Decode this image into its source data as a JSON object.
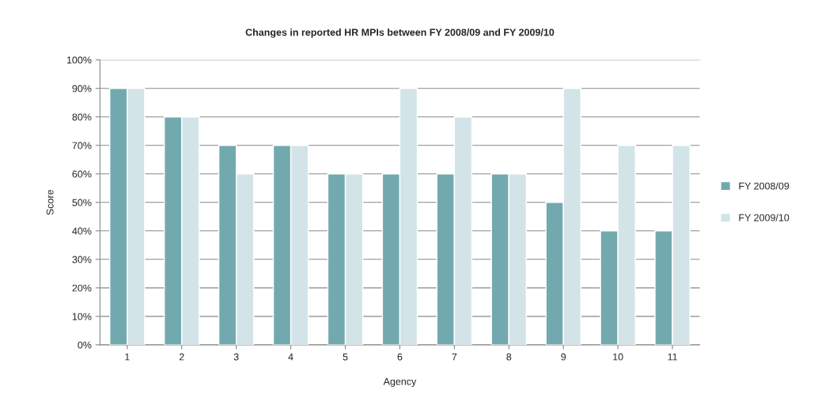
{
  "chart_data": {
    "type": "bar",
    "title": "Changes in reported HR MPIs between FY 2008/09 and FY 2009/10",
    "xlabel": "Agency",
    "ylabel": "Score",
    "categories": [
      "1",
      "2",
      "3",
      "4",
      "5",
      "6",
      "7",
      "8",
      "9",
      "10",
      "11"
    ],
    "series": [
      {
        "name": "FY 2008/09",
        "color": "#72a9ae",
        "values": [
          90,
          80,
          70,
          70,
          60,
          60,
          60,
          60,
          50,
          40,
          40
        ]
      },
      {
        "name": "FY 2009/10",
        "color": "#d3e4e8",
        "values": [
          90,
          80,
          60,
          70,
          60,
          90,
          80,
          60,
          90,
          70,
          70
        ]
      }
    ],
    "ylim": [
      0,
      100
    ],
    "yticks": [
      {
        "value": 0,
        "label": "0%"
      },
      {
        "value": 10,
        "label": "10%"
      },
      {
        "value": 20,
        "label": "20%"
      },
      {
        "value": 30,
        "label": "30%"
      },
      {
        "value": 40,
        "label": "40%"
      },
      {
        "value": 50,
        "label": "50%"
      },
      {
        "value": 60,
        "label": "60%"
      },
      {
        "value": 70,
        "label": "70%"
      },
      {
        "value": 80,
        "label": "80%"
      },
      {
        "value": 90,
        "label": "90%"
      },
      {
        "value": 100,
        "label": "100%"
      }
    ],
    "grid": "y",
    "legend": "right"
  }
}
